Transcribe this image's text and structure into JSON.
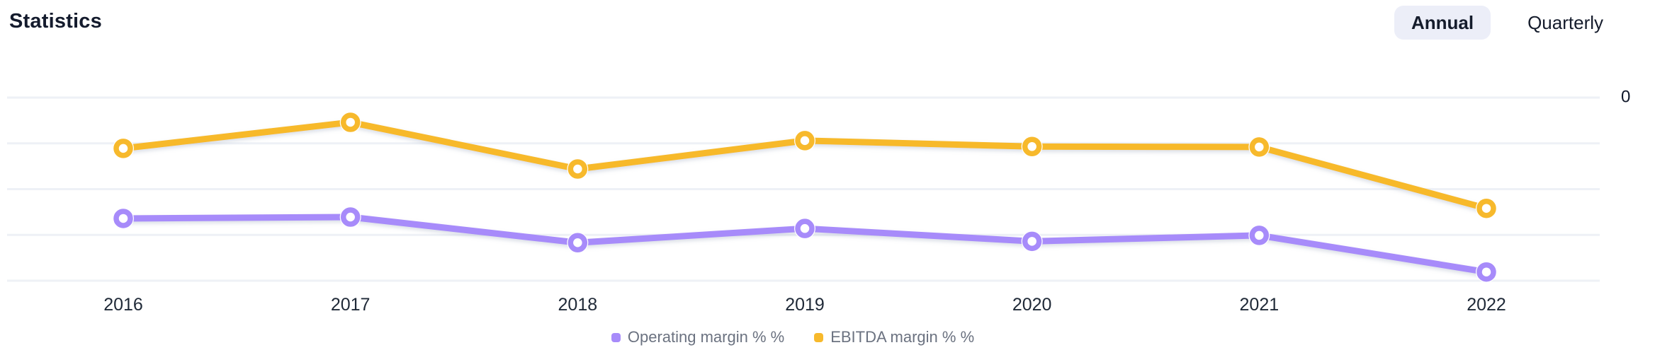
{
  "header": {
    "title": "Statistics",
    "period_toggle": {
      "options": [
        {
          "label": "Annual",
          "selected": true
        },
        {
          "label": "Quarterly",
          "selected": false
        }
      ]
    }
  },
  "chart_data": {
    "type": "line",
    "title": "Statistics",
    "categories": [
      "2016",
      "2017",
      "2018",
      "2019",
      "2020",
      "2021",
      "2022"
    ],
    "series": [
      {
        "name": "Operating margin % %",
        "color": "#a78bfa",
        "values": [
          -26.4,
          -26.1,
          -31.7,
          -28.6,
          -31.4,
          -30.1,
          -38.1
        ]
      },
      {
        "name": "EBITDA margin % %",
        "color": "#f7b92c",
        "values": [
          -11.1,
          -5.4,
          -15.6,
          -9.4,
          -10.7,
          -10.8,
          -24.2
        ]
      }
    ],
    "xlabel": "",
    "ylabel": "",
    "y_axis": {
      "visible_tick_labels": [
        "0"
      ],
      "max": 0,
      "gridline_values": [
        0,
        -10,
        -20,
        -30,
        -40
      ],
      "gridline_interval": 10,
      "side": "right"
    },
    "grid": true,
    "legend_position": "bottom",
    "marker_style": "open-circle",
    "gridline_color": "#eef1f6",
    "background_color": "#ffffff"
  }
}
